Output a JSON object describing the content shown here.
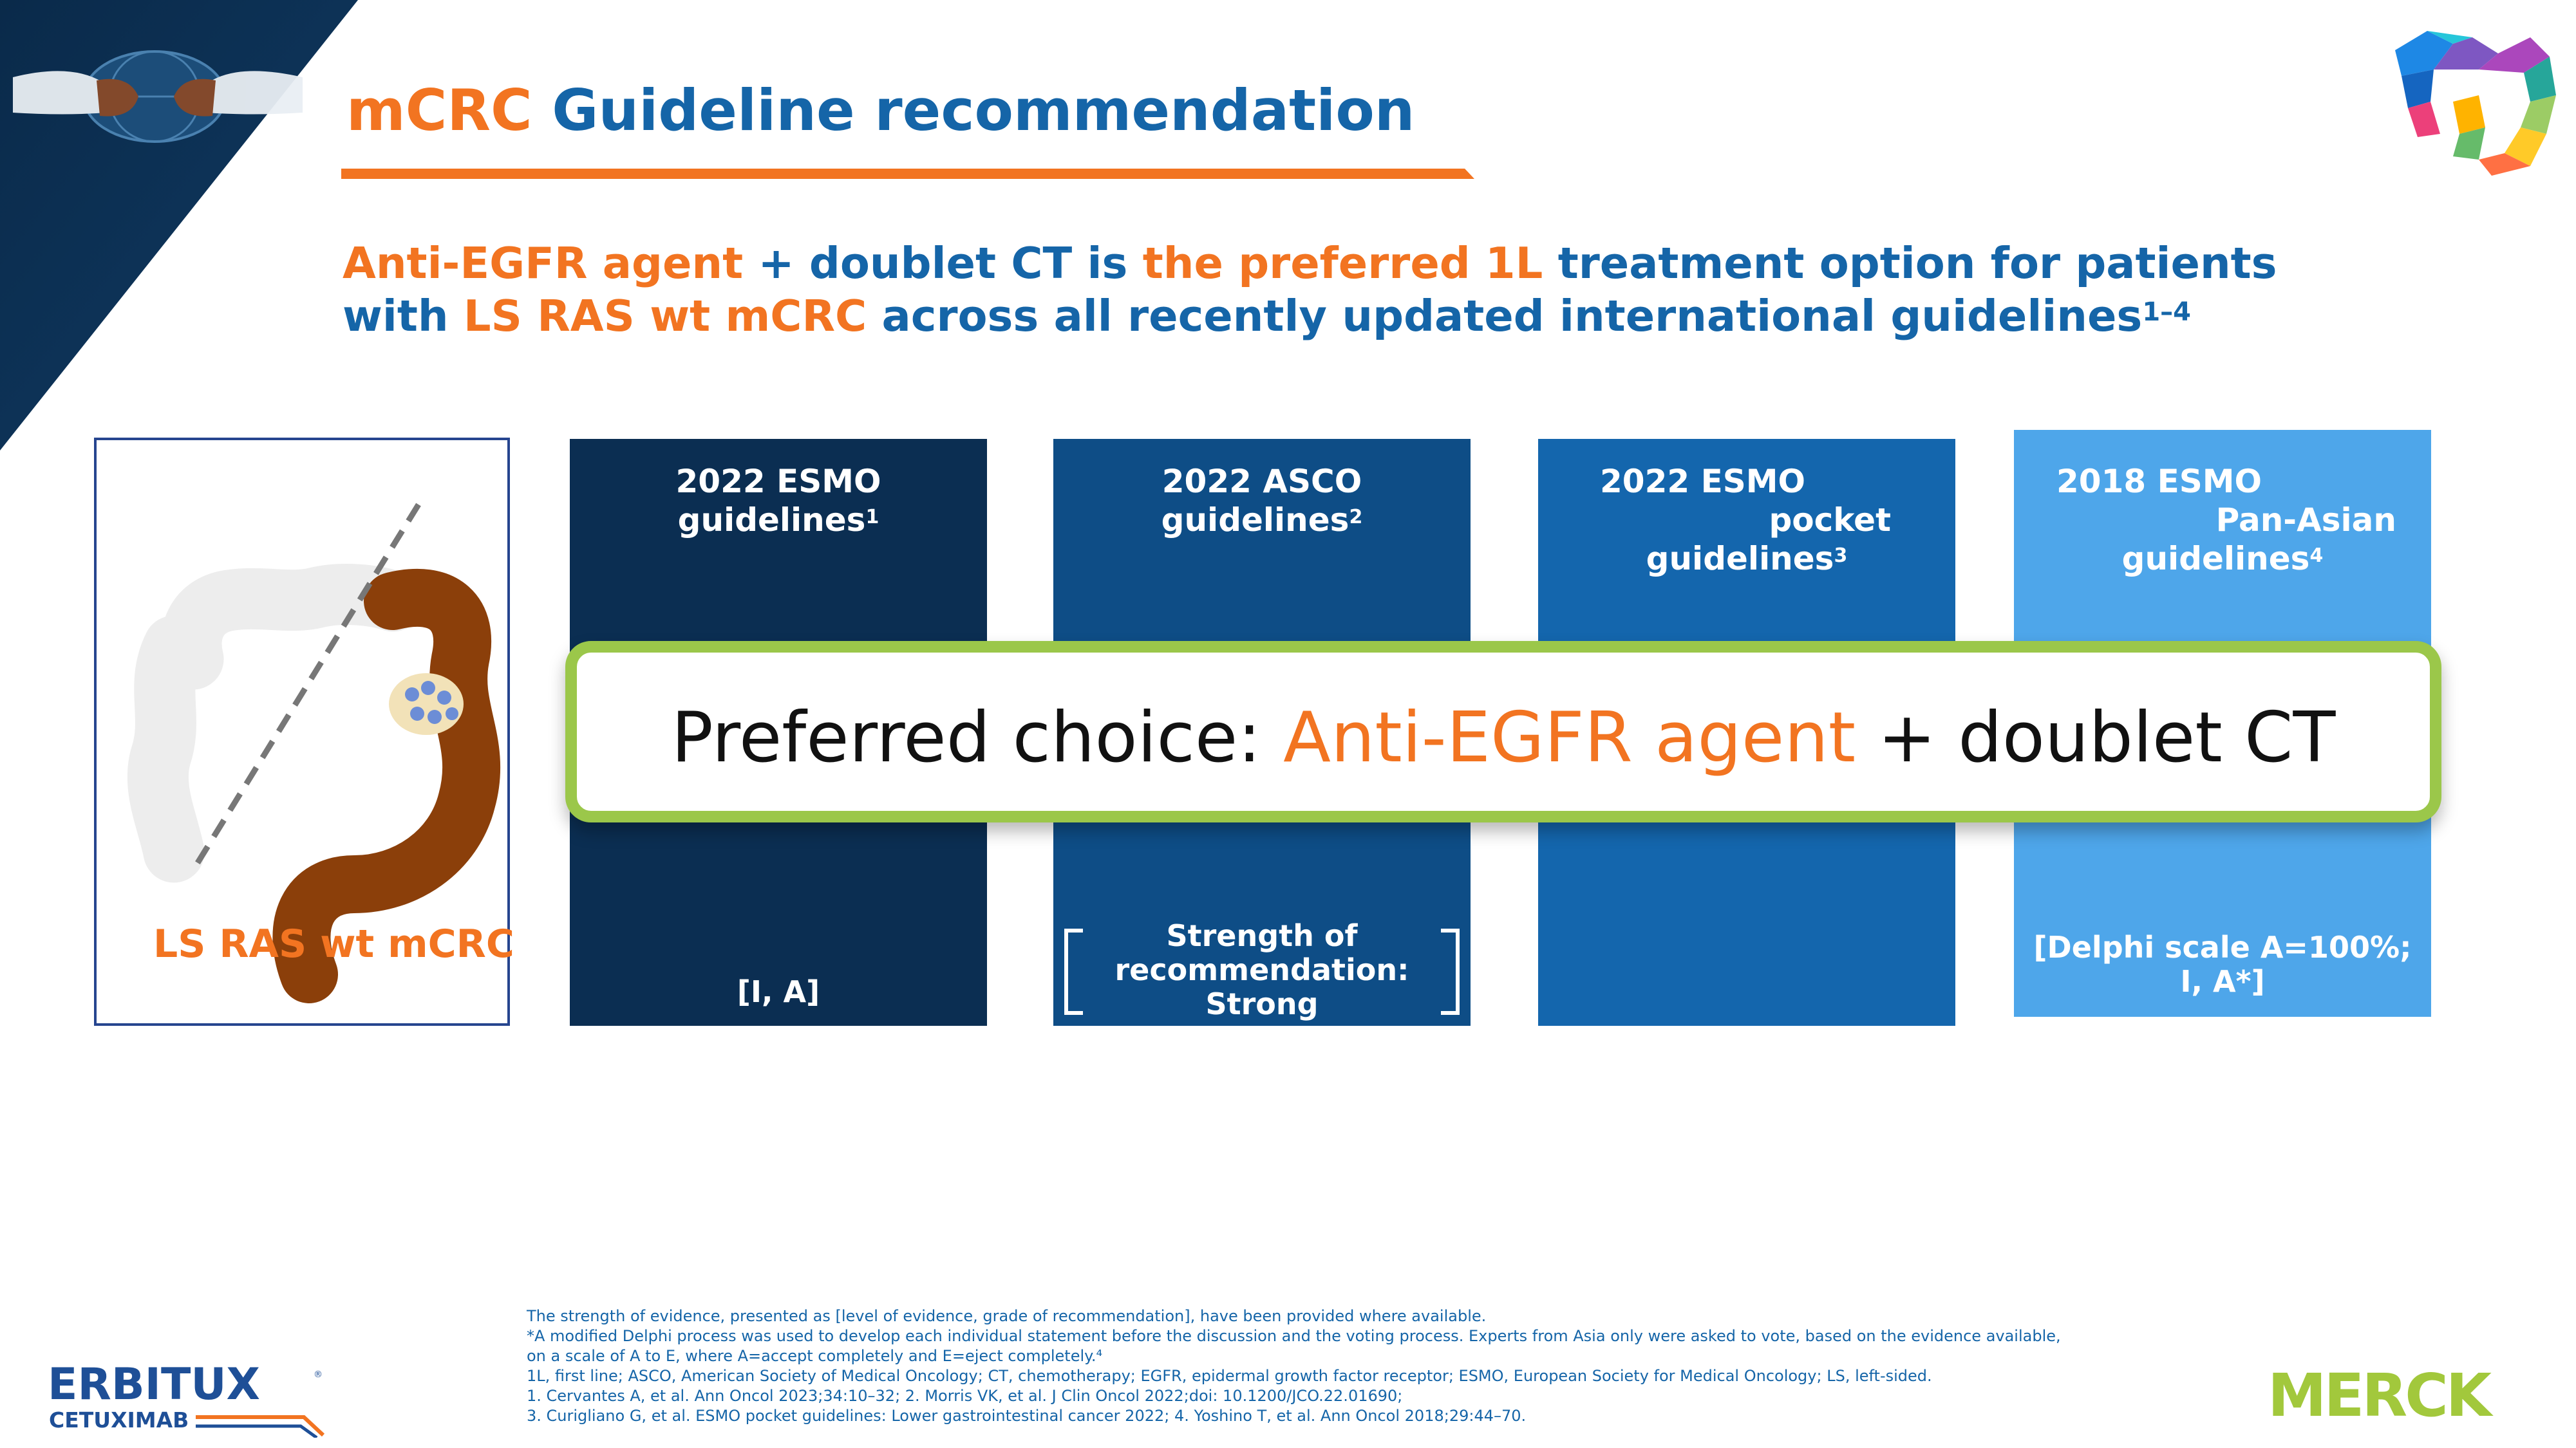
{
  "title": {
    "part1": "mCRC",
    "part2": "Guideline recommendation"
  },
  "headline": {
    "line1": {
      "a": "Anti-EGFR agent",
      "b": " + doublet CT is ",
      "c": "the preferred 1L",
      "d": " treatment option for patients"
    },
    "line2": {
      "a": "with ",
      "b": "LS RAS wt mCRC",
      "c": " across all recently updated international guidelines",
      "sup": "1–4"
    }
  },
  "patient": {
    "label": "LS RAS wt mCRC"
  },
  "guidelines": [
    {
      "head": [
        "2022 ESMO",
        "guidelines"
      ],
      "sup": "1",
      "footer": [
        "[I, A]"
      ],
      "color": "#0B2E52"
    },
    {
      "head": [
        "2022 ASCO",
        "guidelines"
      ],
      "sup": "2",
      "footer": [
        "Strength of",
        "recommendation:",
        "Strong"
      ],
      "color": "#0E4D86"
    },
    {
      "head": [
        "2022 ESMO",
        "pocket",
        "guidelines"
      ],
      "sup": "3",
      "footer": [],
      "color": "#1466AD"
    },
    {
      "head": [
        "2018 ESMO",
        "Pan-Asian",
        "guidelines"
      ],
      "sup": "4",
      "footer": [
        "[Delphi scale A=100%;",
        "I, A*]"
      ],
      "color": "#4EA6EA"
    }
  ],
  "banner": {
    "prefix": "Preferred choice: ",
    "highlight": "Anti-EGFR agent",
    "suffix": " + doublet CT"
  },
  "footnotes": [
    "The strength of evidence, presented as [level of evidence, grade of recommendation], have been provided where available.",
    "*A modified Delphi process was used to develop each individual statement before the discussion and the voting process. Experts from Asia only were asked to vote, based on the evidence available,",
    "on a scale of A to E, where A=accept completely and E=eject completely.⁴",
    "1L, first line; ASCO, American Society of Medical Oncology; CT, chemotherapy; EGFR, epidermal growth factor receptor; ESMO, European Society for Medical Oncology; LS, left-sided.",
    "1. Cervantes A, et al. Ann Oncol 2023;34:10–32; 2. Morris VK, et al. J Clin Oncol 2022;doi: 10.1200/JCO.22.01690;",
    "3. Curigliano G, et al. ESMO pocket guidelines: Lower gastrointestinal cancer 2022; 4. Yoshino T, et al. Ann Oncol 2018;29:44–70."
  ],
  "logos": {
    "brand": "ERBITUX",
    "brand_sub": "CETUXIMAB",
    "company": "MERCK"
  },
  "colors": {
    "orange": "#F27421",
    "blue": "#1565A8",
    "green": "#9BC74A",
    "navy": "#0B2E52"
  }
}
